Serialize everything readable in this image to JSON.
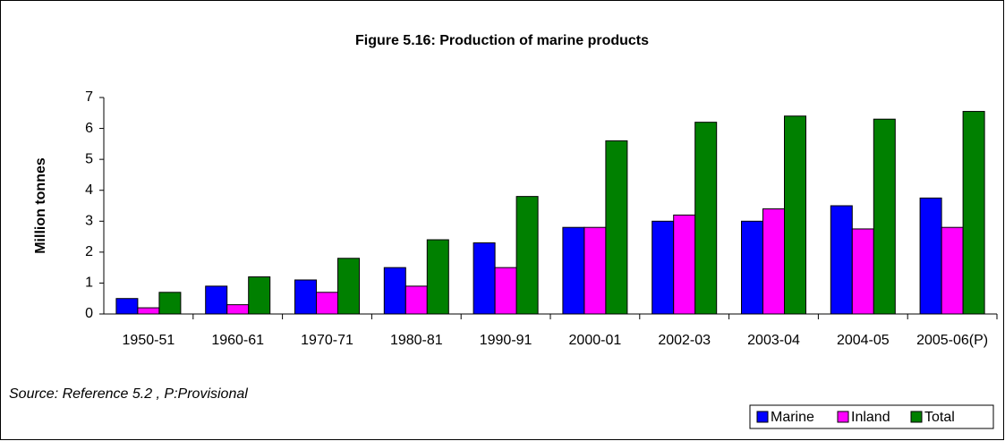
{
  "chart_data": {
    "type": "bar",
    "title": "Figure 5.16: Production of marine products",
    "y_label": "Million tonnes",
    "note": "Source:  Reference 5.2 , P:Provisional",
    "categories": [
      "1950-51",
      "1960-61",
      "1970-71",
      "1980-81",
      "1990-91",
      "2000-01",
      "2002-03",
      "2003-04",
      "2004-05",
      "2005-06(P)"
    ],
    "series": [
      {
        "name": "Marine",
        "color": "#0000ff",
        "values": [
          0.5,
          0.9,
          1.1,
          1.5,
          2.3,
          2.8,
          3.0,
          3.0,
          3.5,
          3.75
        ]
      },
      {
        "name": "Inland",
        "color": "#ff00ff",
        "values": [
          0.2,
          0.3,
          0.7,
          0.9,
          1.5,
          2.8,
          3.2,
          3.4,
          2.75,
          2.8
        ]
      },
      {
        "name": "Total",
        "color": "#008000",
        "values": [
          0.7,
          1.2,
          1.8,
          2.4,
          3.8,
          5.6,
          6.2,
          6.4,
          6.3,
          6.55
        ]
      }
    ],
    "ylim": [
      0,
      7
    ],
    "yticks": [
      0,
      1,
      2,
      3,
      4,
      5,
      6,
      7
    ],
    "legend": "bottom-right"
  }
}
